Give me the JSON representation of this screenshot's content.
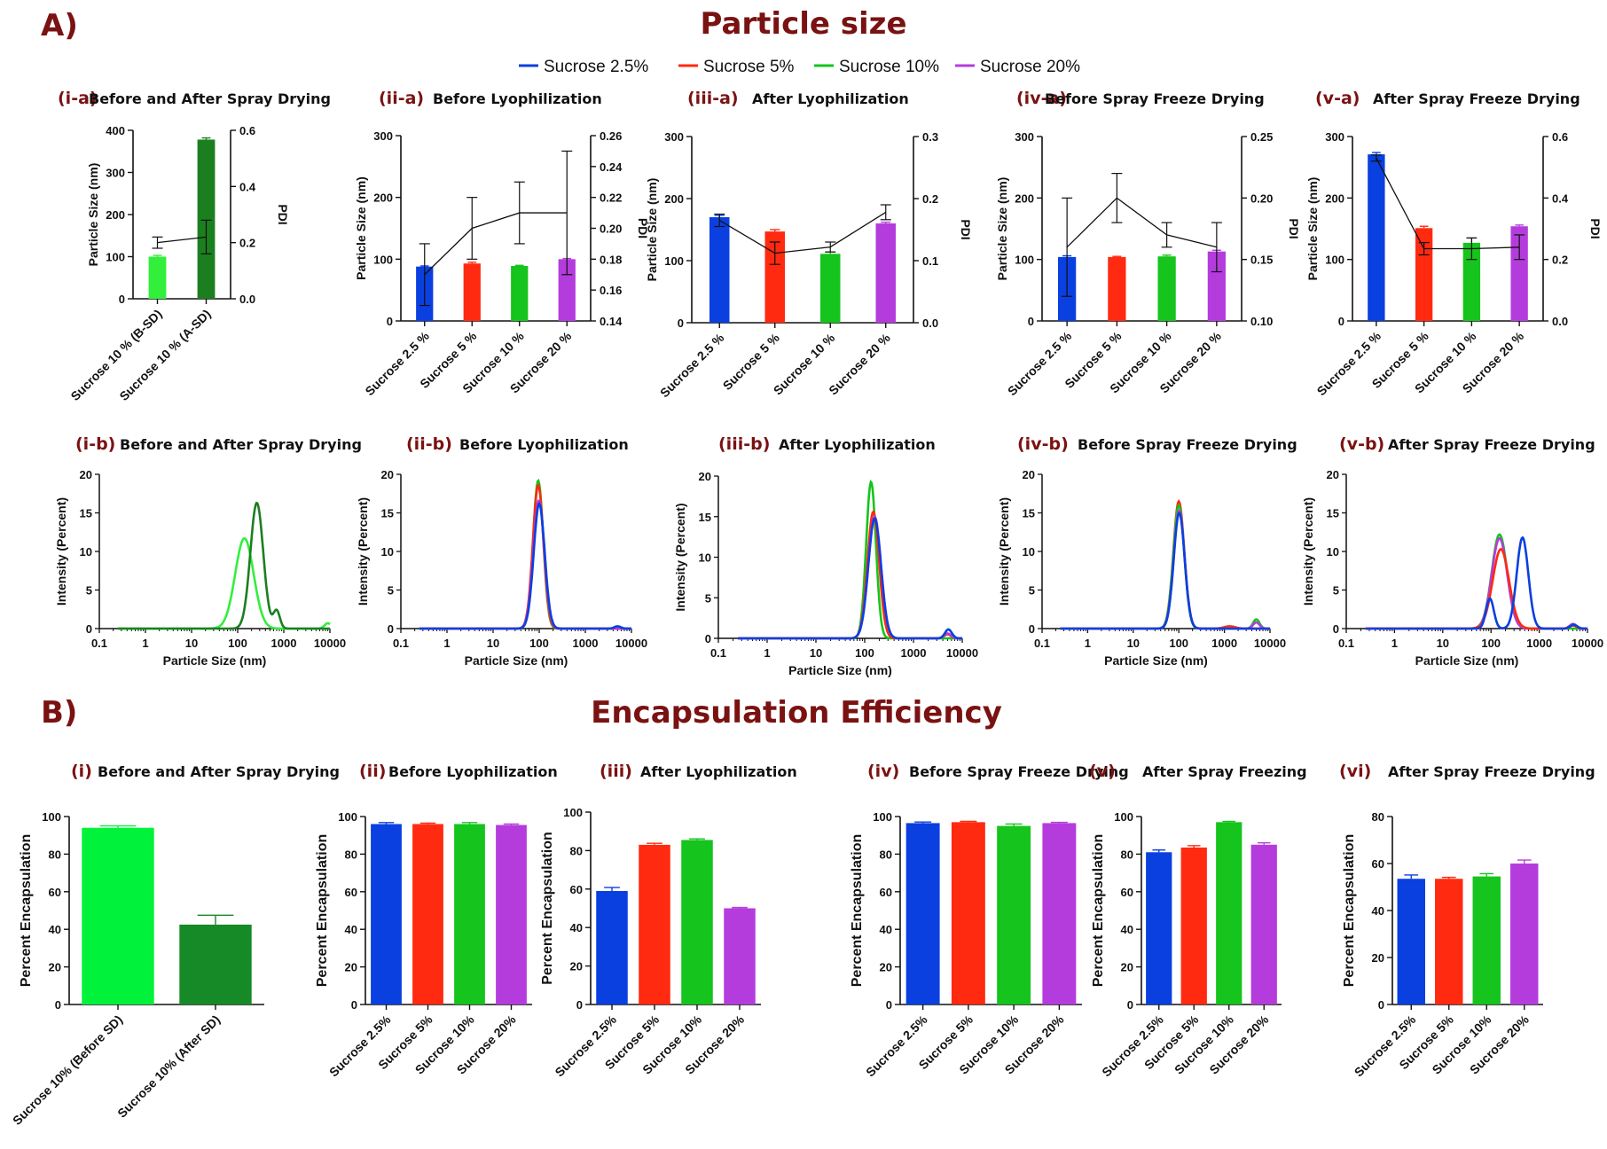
{
  "section_a": {
    "letter": "A)",
    "title": "Particle size"
  },
  "section_b": {
    "letter": "B)",
    "title": "Encapsulation Efficiency"
  },
  "legend": [
    {
      "name": "Sucrose 2.5%",
      "color": "#0a3fe0"
    },
    {
      "name": "Sucrose 5%",
      "color": "#ff2a10"
    },
    {
      "name": "Sucrose 10%",
      "color": "#15c41c"
    },
    {
      "name": "Sucrose 20%",
      "color": "#b53cdc"
    }
  ],
  "colors": {
    "blue": "#0a3fe0",
    "red": "#ff2a10",
    "green": "#15c41c",
    "purple": "#b53cdc",
    "lightgreen": "#32ef3c",
    "darkgreen": "#1b7f1f",
    "title": "#7a1212"
  },
  "chart_data": [
    {
      "id": "ia",
      "type": "bar",
      "label": "(i-a)",
      "title": "Before and After Spray Drying",
      "ylabel": "Particle Size (nm)",
      "y2label": "PDI",
      "categories": [
        "Sucrose 10 % (B-SD)",
        "Sucrose 10 % (A-SD)"
      ],
      "values": [
        100,
        378
      ],
      "errors": [
        3,
        4
      ],
      "bar_colors": [
        "#32ef3c",
        "#1b7f1f"
      ],
      "ylim": [
        0,
        400
      ],
      "yticks": [
        0,
        100,
        200,
        300,
        400
      ],
      "y2lim": [
        0,
        0.6
      ],
      "y2ticks": [
        "0.0",
        "0.2",
        "0.4",
        "0.6"
      ],
      "pdi": [
        0.2,
        0.22
      ],
      "pdi_err": [
        0.02,
        0.06
      ]
    },
    {
      "id": "iia",
      "type": "bar",
      "label": "(ii-a)",
      "title": "Before Lyophilization",
      "ylabel": "Particle Size (nm)",
      "y2label": "PDI",
      "categories": [
        "Sucrose 2.5 %",
        "Sucrose 5 %",
        "Sucrose 10 %",
        "Sucrose 20 %"
      ],
      "values": [
        88,
        93,
        89,
        100
      ],
      "errors": [
        1,
        2,
        1,
        1
      ],
      "ylim": [
        0,
        300
      ],
      "yticks": [
        0,
        100,
        200,
        300
      ],
      "y2lim": [
        0.14,
        0.26
      ],
      "y2ticks": [
        "0.14",
        "0.16",
        "0.18",
        "0.20",
        "0.22",
        "0.24",
        "0.26"
      ],
      "pdi": [
        0.17,
        0.2,
        0.21,
        0.21
      ],
      "pdi_err": [
        0.02,
        0.02,
        0.02,
        0.04
      ]
    },
    {
      "id": "iiia",
      "type": "bar",
      "label": "(iii-a)",
      "title": "After Lyophilization",
      "ylabel": "Particle Size (nm)",
      "y2label": "PDI",
      "categories": [
        "Sucrose 2.5 %",
        "Sucrose 5 %",
        "Sucrose 10 %",
        "Sucrose 20 %"
      ],
      "values": [
        170,
        147,
        111,
        160
      ],
      "errors": [
        3,
        3,
        3,
        2
      ],
      "ylim": [
        0,
        300
      ],
      "yticks": [
        0,
        100,
        200,
        300
      ],
      "y2lim": [
        0,
        0.3
      ],
      "y2ticks": [
        "0.0",
        "0.1",
        "0.2",
        "0.3"
      ],
      "pdi": [
        0.165,
        0.112,
        0.122,
        0.178
      ],
      "pdi_err": [
        0.01,
        0.018,
        0.008,
        0.012
      ]
    },
    {
      "id": "iva",
      "type": "bar",
      "label": "(iv-a)",
      "title": "Before Spray Freeze Drying",
      "ylabel": "Particle Size (nm)",
      "y2label": "PDI",
      "categories": [
        "Sucrose 2.5 %",
        "Sucrose 5 %",
        "Sucrose 10 %",
        "Sucrose 20 %"
      ],
      "values": [
        104,
        104,
        105,
        113
      ],
      "errors": [
        2,
        1,
        2,
        2
      ],
      "ylim": [
        0,
        300
      ],
      "yticks": [
        0,
        100,
        200,
        300
      ],
      "y2lim": [
        0.1,
        0.25
      ],
      "y2ticks": [
        "0.10",
        "0.15",
        "0.20",
        "0.25"
      ],
      "pdi": [
        0.16,
        0.2,
        0.17,
        0.16
      ],
      "pdi_err": [
        0.04,
        0.02,
        0.01,
        0.02
      ]
    },
    {
      "id": "va",
      "type": "bar",
      "label": "(v-a)",
      "title": "After Spray Freeze Drying",
      "ylabel": "Particle Size (nm)",
      "y2label": "PDI",
      "categories": [
        "Sucrose 2.5 %",
        "Sucrose 5 %",
        "Sucrose 10 %",
        "Sucrose 20 %"
      ],
      "values": [
        271,
        151,
        127,
        154
      ],
      "errors": [
        3,
        3,
        8,
        2
      ],
      "ylim": [
        0,
        300
      ],
      "yticks": [
        0,
        100,
        200,
        300
      ],
      "y2lim": [
        0,
        0.6
      ],
      "y2ticks": [
        "0.0",
        "0.2",
        "0.4",
        "0.6"
      ],
      "pdi": [
        0.53,
        0.235,
        0.235,
        0.24
      ],
      "pdi_err": [
        0.01,
        0.02,
        0.035,
        0.04
      ]
    },
    {
      "id": "ib",
      "type": "line",
      "label": "(i-b)",
      "title": "Before and After Spray Drying",
      "xlabel": "Particle Size (nm)",
      "ylabel": "Intensity (Percent)",
      "xscale": "log",
      "xticks": [
        "0.1",
        "1",
        "10",
        "100",
        "1000",
        "10000"
      ],
      "ylim": [
        0,
        20
      ],
      "yticks": [
        0,
        5,
        10,
        15,
        20
      ],
      "series": [
        {
          "color": "#32ef3c",
          "peaks": [
            [
              140,
              11.7,
              0.2
            ]
          ],
          "tail": [
            9000,
            0.7
          ]
        },
        {
          "color": "#1b7f1f",
          "peaks": [
            [
              260,
              16.3,
              0.14
            ],
            [
              700,
              2.3,
              0.07
            ]
          ]
        }
      ]
    },
    {
      "id": "iib",
      "type": "line",
      "label": "(ii-b)",
      "title": "Before Lyophilization",
      "xlabel": "Particle Size (nm)",
      "ylabel": "Intensity (Percent)",
      "xscale": "log",
      "xticks": [
        "0.1",
        "1",
        "10",
        "100",
        "1000",
        "10000"
      ],
      "ylim": [
        0,
        20
      ],
      "yticks": [
        0,
        5,
        10,
        15,
        20
      ],
      "series": [
        {
          "color": "#15c41c",
          "peaks": [
            [
              95,
              19.2,
              0.11
            ]
          ]
        },
        {
          "color": "#ff2a10",
          "peaks": [
            [
              95,
              18.6,
              0.115
            ]
          ]
        },
        {
          "color": "#b53cdc",
          "peaks": [
            [
              98,
              16.6,
              0.12
            ]
          ]
        },
        {
          "color": "#0a3fe0",
          "peaks": [
            [
              100,
              16.2,
              0.12
            ]
          ],
          "tail": [
            5000,
            0.3
          ]
        }
      ]
    },
    {
      "id": "iiib",
      "type": "line",
      "label": "(iii-b)",
      "title": "After Lyophilization",
      "xlabel": "Particle Size (nm)",
      "ylabel": "Intensity (Percent)",
      "xscale": "log",
      "xticks": [
        "0.1",
        "1",
        "10",
        "100",
        "1000",
        "10000"
      ],
      "ylim": [
        0,
        20
      ],
      "yticks": [
        0,
        5,
        10,
        15,
        20
      ],
      "series": [
        {
          "color": "#15c41c",
          "peaks": [
            [
              135,
              19.3,
              0.1
            ]
          ]
        },
        {
          "color": "#ff2a10",
          "peaks": [
            [
              150,
              15.6,
              0.12
            ]
          ],
          "tail": [
            5000,
            0.5
          ]
        },
        {
          "color": "#b53cdc",
          "peaks": [
            [
              160,
              15.0,
              0.13
            ]
          ],
          "tail": [
            5000,
            0.6
          ]
        },
        {
          "color": "#0a3fe0",
          "peaks": [
            [
              160,
              14.8,
              0.13
            ]
          ],
          "tail": [
            5200,
            1.1
          ]
        }
      ]
    },
    {
      "id": "ivb",
      "type": "line",
      "label": "(iv-b)",
      "title": "Before Spray Freeze Drying",
      "xlabel": "Particle Size (nm)",
      "ylabel": "Intensity (Percent)",
      "xscale": "log",
      "xticks": [
        "0.1",
        "1",
        "10",
        "100",
        "1000",
        "10000"
      ],
      "ylim": [
        0,
        20
      ],
      "yticks": [
        0,
        5,
        10,
        15,
        20
      ],
      "series": [
        {
          "color": "#ff2a10",
          "peaks": [
            [
              100,
              16.5,
              0.12
            ],
            [
              1300,
              0.3,
              0.12
            ]
          ]
        },
        {
          "color": "#15c41c",
          "peaks": [
            [
              100,
              16.0,
              0.12
            ]
          ],
          "tail": [
            5000,
            1.2
          ]
        },
        {
          "color": "#b53cdc",
          "peaks": [
            [
              102,
              15.3,
              0.12
            ]
          ],
          "tail": [
            5000,
            0.8
          ]
        },
        {
          "color": "#0a3fe0",
          "peaks": [
            [
              102,
              15.0,
              0.12
            ]
          ]
        }
      ]
    },
    {
      "id": "vb",
      "type": "line",
      "label": "(v-b)",
      "title": "After Spray Freeze Drying",
      "xlabel": "Particle Size (nm)",
      "ylabel": "Intensity (Percent)",
      "xscale": "log",
      "xticks": [
        "0.1",
        "1",
        "10",
        "100",
        "1000",
        "10000"
      ],
      "ylim": [
        0,
        20
      ],
      "yticks": [
        0,
        5,
        10,
        15,
        20
      ],
      "series": [
        {
          "color": "#15c41c",
          "peaks": [
            [
              150,
              12.2,
              0.16
            ]
          ]
        },
        {
          "color": "#b53cdc",
          "peaks": [
            [
              150,
              11.7,
              0.16
            ]
          ],
          "tail": [
            5000,
            0.6
          ]
        },
        {
          "color": "#ff2a10",
          "peaks": [
            [
              160,
              10.3,
              0.17
            ]
          ],
          "tail": [
            5000,
            0.4
          ]
        },
        {
          "color": "#0a3fe0",
          "peaks": [
            [
              95,
              3.9,
              0.08
            ],
            [
              450,
              11.8,
              0.12
            ]
          ],
          "tail": [
            5200,
            0.5
          ]
        }
      ]
    },
    {
      "id": "b1",
      "type": "bar",
      "label": "(i)",
      "title": "Before and After Spray Drying",
      "ylabel": "Percent Encapsulation",
      "categories": [
        "Sucrose 10% (Before SD)",
        "Sucrose 10% (After SD)"
      ],
      "values": [
        94,
        42.5
      ],
      "errors": [
        1,
        5
      ],
      "bar_colors": [
        "#00f23a",
        "#168a26"
      ],
      "ylim": [
        0,
        100
      ],
      "yticks": [
        0,
        20,
        40,
        60,
        80,
        100
      ]
    },
    {
      "id": "b2",
      "type": "bar",
      "label": "(ii)",
      "title": "Before Lyophilization",
      "ylabel": "Percent Encapsulation",
      "categories": [
        "Sucrose 2.5%",
        "Sucrose 5%",
        "Sucrose 10%",
        "Sucrose 20%"
      ],
      "values": [
        96,
        96,
        96,
        95.5
      ],
      "errors": [
        0.8,
        0.5,
        0.8,
        0.5
      ],
      "ylim": [
        0,
        100
      ],
      "yticks": [
        0,
        20,
        40,
        60,
        80,
        100
      ]
    },
    {
      "id": "b3",
      "type": "bar",
      "label": "(iii)",
      "title": "After Lyophilization",
      "ylabel": "Percent Encapsulation",
      "categories": [
        "Sucrose 2.5%",
        "Sucrose 5%",
        "Sucrose 10%",
        "Sucrose 20%"
      ],
      "values": [
        59,
        83,
        85.5,
        50
      ],
      "errors": [
        1.8,
        0.8,
        0.6,
        0.4
      ],
      "ylim": [
        0,
        100
      ],
      "yticks": [
        0,
        20,
        40,
        60,
        80,
        100
      ]
    },
    {
      "id": "b4",
      "type": "bar",
      "label": "(iv)",
      "title": "Before Spray Freeze Drying",
      "ylabel": "Percent Encapsulation",
      "categories": [
        "Sucrose 2.5%",
        "Sucrose 5%",
        "Sucrose 10%",
        "Sucrose 20%"
      ],
      "values": [
        96.5,
        97,
        95,
        96.5
      ],
      "errors": [
        0.6,
        0.4,
        1,
        0.4
      ],
      "ylim": [
        0,
        100
      ],
      "yticks": [
        0,
        20,
        40,
        60,
        80,
        100
      ]
    },
    {
      "id": "b5",
      "type": "bar",
      "label": "(v)",
      "title": "After Spray Freezing",
      "ylabel": "Percent Encapsulation",
      "categories": [
        "Sucrose 2.5%",
        "Sucrose 5%",
        "Sucrose 10%",
        "Sucrose 20%"
      ],
      "values": [
        81,
        83.5,
        97,
        85
      ],
      "errors": [
        1.2,
        1,
        0.4,
        1
      ],
      "ylim": [
        0,
        100
      ],
      "yticks": [
        0,
        20,
        40,
        60,
        80,
        100
      ]
    },
    {
      "id": "b6",
      "type": "bar",
      "label": "(vi)",
      "title": "After Spray Freeze Drying",
      "ylabel": "Percent Encapsulation",
      "categories": [
        "Sucrose 2.5%",
        "Sucrose 5%",
        "Sucrose 10%",
        "Sucrose 20%"
      ],
      "values": [
        53.5,
        53.5,
        54.5,
        60
      ],
      "errors": [
        1.6,
        0.6,
        1.2,
        1.5
      ],
      "ylim": [
        0,
        80
      ],
      "yticks": [
        0,
        20,
        40,
        60,
        80
      ]
    }
  ]
}
